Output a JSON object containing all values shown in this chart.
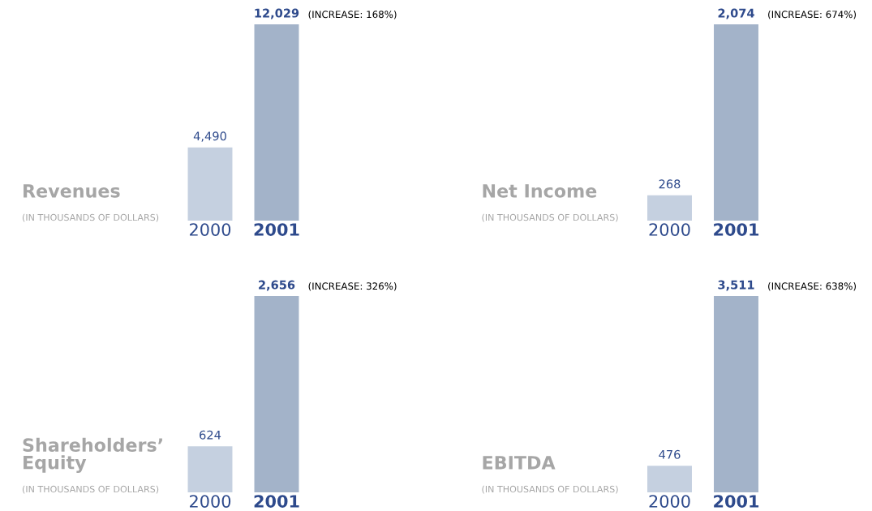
{
  "chart_data": [
    {
      "type": "bar",
      "title": "Revenues",
      "subtitle": "(IN THOUSANDS OF DOLLARS)",
      "categories": [
        "2000",
        "2001"
      ],
      "values": [
        4490,
        12029
      ],
      "value_labels": [
        "4,490",
        "12,029"
      ],
      "colors": [
        "#c5d0e0",
        "#a3b3c9"
      ],
      "annotations": [
        "(INCREASE: 168%)"
      ]
    },
    {
      "type": "bar",
      "title": "Net Income",
      "subtitle": "(IN THOUSANDS OF DOLLARS)",
      "categories": [
        "2000",
        "2001"
      ],
      "values": [
        268,
        2074
      ],
      "value_labels": [
        "268",
        "2,074"
      ],
      "colors": [
        "#c5d0e0",
        "#a3b3c9"
      ],
      "annotations": [
        "(INCREASE: 674%)"
      ]
    },
    {
      "type": "bar",
      "title": "Shareholders’\nEquity",
      "subtitle": "(IN THOUSANDS OF DOLLARS)",
      "categories": [
        "2000",
        "2001"
      ],
      "values": [
        624,
        2656
      ],
      "value_labels": [
        "624",
        "2,656"
      ],
      "colors": [
        "#c5d0e0",
        "#a3b3c9"
      ],
      "annotations": [
        "(INCREASE: 326%)"
      ]
    },
    {
      "type": "bar",
      "title": "EBITDA",
      "subtitle": "(IN THOUSANDS OF DOLLARS)",
      "categories": [
        "2000",
        "2001"
      ],
      "values": [
        476,
        3511
      ],
      "value_labels": [
        "476",
        "3,511"
      ],
      "colors": [
        "#c5d0e0",
        "#a3b3c9"
      ],
      "annotations": [
        "(INCREASE: 638%)"
      ]
    }
  ]
}
